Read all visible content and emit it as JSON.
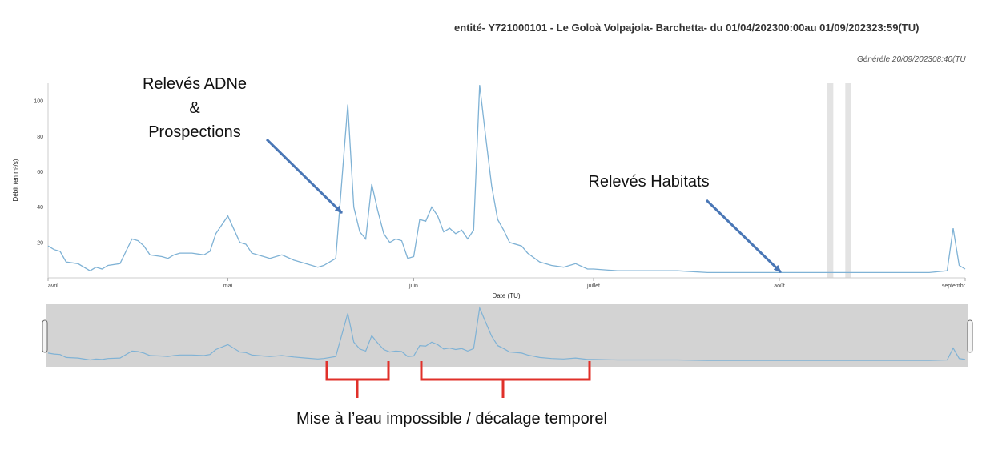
{
  "header": {
    "title": "entité- Y721000101 - Le Goloà Volpajola- Barchetta- du 01/04/202300:00au 01/09/202323:59(TU)",
    "generated": "Généréle 20/09/202308:40(TU"
  },
  "annotations": {
    "adne_line1": "Relevés ADNe",
    "adne_line2": "&",
    "adne_line3": "Prospections",
    "habitats": "Relevés Habitats",
    "bottom": "Mise à l’eau impossible / décalage temporel"
  },
  "colors": {
    "series": "#7fb2d5",
    "navigator_bg": "#d3d3d3",
    "gap_band": "#e3e3e3",
    "arrow": "#4a77b6",
    "bracket": "#e0302a"
  },
  "chart_data": {
    "type": "line",
    "xlabel": "Date (TU)",
    "ylabel": "Débit (en m³/s)",
    "ylim": [
      0,
      110
    ],
    "ylim_note": "y axis begins at 0",
    "yticks": [
      20,
      40,
      60,
      80,
      100
    ],
    "x_ticks": [
      "avril",
      "mai",
      "juin",
      "juillet",
      "août",
      "septembr"
    ],
    "x_tick_dates": [
      "2023-04-01",
      "2023-05-01",
      "2023-06-01",
      "2023-07-01",
      "2023-08-01",
      "2023-09-01"
    ],
    "x_range": [
      "2023-04-01",
      "2023-09-01"
    ],
    "gaps": [
      [
        "2023-08-09",
        "2023-08-10"
      ],
      [
        "2023-08-12",
        "2023-08-13"
      ]
    ],
    "grid": false,
    "legend": "none",
    "series": [
      {
        "x": [
          "2023-04-01",
          "2023-04-02",
          "2023-04-03",
          "2023-04-04",
          "2023-04-06",
          "2023-04-08",
          "2023-04-09",
          "2023-04-10",
          "2023-04-11",
          "2023-04-13",
          "2023-04-15",
          "2023-04-16",
          "2023-04-17",
          "2023-04-18",
          "2023-04-20",
          "2023-04-21",
          "2023-04-22",
          "2023-04-23",
          "2023-04-25",
          "2023-04-27",
          "2023-04-28",
          "2023-04-29",
          "2023-05-01",
          "2023-05-03",
          "2023-05-04",
          "2023-05-05",
          "2023-05-07",
          "2023-05-08",
          "2023-05-10",
          "2023-05-12",
          "2023-05-14",
          "2023-05-16",
          "2023-05-17",
          "2023-05-19",
          "2023-05-21",
          "2023-05-22",
          "2023-05-23",
          "2023-05-24",
          "2023-05-25",
          "2023-05-26",
          "2023-05-27",
          "2023-05-28",
          "2023-05-29",
          "2023-05-30",
          "2023-05-31",
          "2023-06-01",
          "2023-06-02",
          "2023-06-03",
          "2023-06-04",
          "2023-06-05",
          "2023-06-06",
          "2023-06-07",
          "2023-06-08",
          "2023-06-09",
          "2023-06-10",
          "2023-06-11",
          "2023-06-12",
          "2023-06-13",
          "2023-06-14",
          "2023-06-15",
          "2023-06-16",
          "2023-06-17",
          "2023-06-19",
          "2023-06-20",
          "2023-06-22",
          "2023-06-24",
          "2023-06-26",
          "2023-06-28",
          "2023-06-30",
          "2023-07-01",
          "2023-07-05",
          "2023-07-10",
          "2023-07-15",
          "2023-07-20",
          "2023-07-25",
          "2023-07-30",
          "2023-08-01",
          "2023-08-05",
          "2023-08-08",
          "2023-08-10",
          "2023-08-13",
          "2023-08-15",
          "2023-08-18",
          "2023-08-22",
          "2023-08-26",
          "2023-08-29",
          "2023-08-30",
          "2023-08-31",
          "2023-09-01"
        ],
        "values": [
          18,
          16,
          15,
          9,
          8,
          4,
          6,
          5,
          7,
          8,
          22,
          21,
          18,
          13,
          12,
          11,
          13,
          14,
          14,
          13,
          15,
          25,
          35,
          20,
          19,
          14,
          12,
          11,
          13,
          10,
          8,
          6,
          7,
          11,
          98,
          40,
          26,
          22,
          53,
          38,
          25,
          20,
          22,
          21,
          11,
          12,
          33,
          32,
          40,
          35,
          26,
          28,
          25,
          27,
          22,
          27,
          109,
          80,
          52,
          33,
          27,
          20,
          18,
          14,
          9,
          7,
          6,
          8,
          5,
          5,
          4,
          4,
          4,
          3,
          3,
          3,
          3,
          3,
          3,
          3,
          3,
          3,
          3,
          3,
          3,
          4,
          28,
          7,
          5
        ]
      }
    ]
  }
}
